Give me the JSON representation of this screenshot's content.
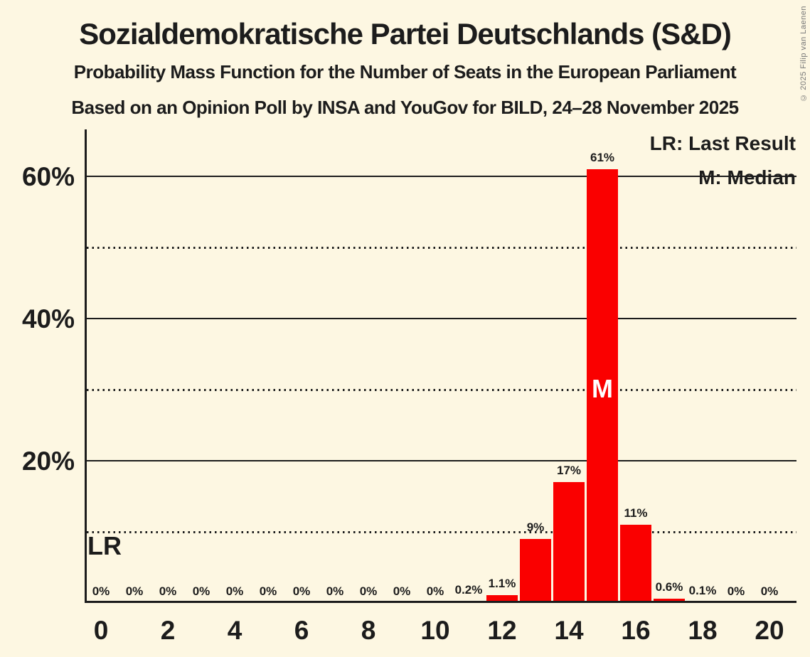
{
  "page": {
    "copyright": "© 2025 Filip van Laenen"
  },
  "legend": {
    "last_result": "LR: Last Result",
    "median": "M: Median"
  },
  "colors": {
    "background": "#FDF7E2",
    "bar": "#FA0000",
    "ink": "#1C1C1C",
    "median_letter": "#FFFFFF",
    "copyright_text": "#777777"
  },
  "chart_data": {
    "type": "bar",
    "title": "Sozialdemokratische Partei Deutschlands (S&D)",
    "subtitle": "Probability Mass Function for the Number of Seats in the European Parliament",
    "source_line": "Based on an Opinion Poll by INSA and YouGov for BILD, 24–28 November 2025",
    "xlabel": "",
    "ylabel": "",
    "seats": [
      0,
      1,
      2,
      3,
      4,
      5,
      6,
      7,
      8,
      9,
      10,
      11,
      12,
      13,
      14,
      15,
      16,
      17,
      18,
      19,
      20
    ],
    "probabilities_pct": [
      0,
      0,
      0,
      0,
      0,
      0,
      0,
      0,
      0,
      0,
      0,
      0.2,
      1.1,
      9,
      17,
      61,
      11,
      0.6,
      0.1,
      0,
      0
    ],
    "bar_labels": [
      "0%",
      "0%",
      "0%",
      "0%",
      "0%",
      "0%",
      "0%",
      "0%",
      "0%",
      "0%",
      "0%",
      "0.2%",
      "1.1%",
      "9%",
      "17%",
      "61%",
      "11%",
      "0.6%",
      "0.1%",
      "0%",
      "0%"
    ],
    "xticks": [
      0,
      2,
      4,
      6,
      8,
      10,
      12,
      14,
      16,
      18,
      20
    ],
    "yticks": [
      {
        "pct": 20,
        "label": "20%"
      },
      {
        "pct": 40,
        "label": "40%"
      },
      {
        "pct": 60,
        "label": "60%"
      }
    ],
    "gridlines": {
      "solid_pct": [
        20,
        40,
        60
      ],
      "dotted_pct": [
        10,
        30,
        50
      ]
    },
    "ylim": [
      0,
      66.6
    ],
    "median_seat": 15,
    "median_marker": "M",
    "last_result_marker": "LR",
    "legend_position": "top-right",
    "grid": "horizontal-only"
  }
}
